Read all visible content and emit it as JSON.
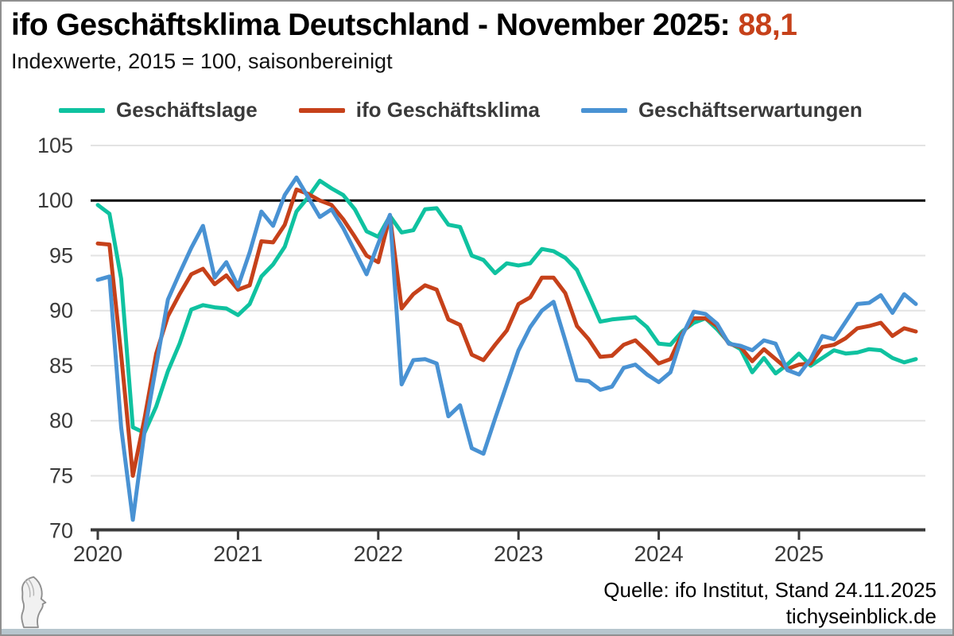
{
  "header": {
    "title": "ifo Geschäftsklima Deutschland - November 2025: ",
    "title_value": "88,1",
    "subtitle": "Indexwerte, 2015 = 100, saisonbereinigt"
  },
  "legend": [
    {
      "label": "Geschäftslage",
      "color": "#0fc2a0"
    },
    {
      "label": "ifo Geschäftsklima",
      "color": "#c6411a"
    },
    {
      "label": "Geschäftserwartungen",
      "color": "#4992d3"
    }
  ],
  "footer": {
    "source_line1": "Quelle: ifo Institut, Stand 24.11.2025",
    "source_line2": "tichyseinblick.de",
    "logo": "tichys-einblick-head-logo"
  },
  "colors": {
    "title_value": "#c6411a",
    "grid": "#e3e3e3",
    "baseline": "#000000",
    "axis": "#3a3a3a",
    "bottom_bar": "#b7c6ce",
    "frame_border": "#909090"
  },
  "chart_data": {
    "type": "line",
    "title": "ifo Geschäftsklima Deutschland - November 2025: 88,1",
    "subtitle": "Indexwerte, 2015 = 100, saisonbereinigt",
    "x_start": "2020-01",
    "x_end": "2025-11",
    "x_tick_labels": [
      "2020",
      "2021",
      "2022",
      "2023",
      "2024",
      "2025"
    ],
    "x_tick_months": [
      0,
      12,
      24,
      36,
      48,
      60
    ],
    "y_ticks": [
      105,
      100,
      95,
      90,
      85,
      80,
      75,
      70
    ],
    "ylim": [
      70,
      105
    ],
    "baseline": 100,
    "grid": true,
    "legend_position": "top",
    "series": [
      {
        "name": "Geschäftslage",
        "color": "#0fc2a0",
        "values": [
          99.6,
          98.8,
          92.9,
          79.4,
          78.9,
          81.3,
          84.5,
          87.0,
          90.1,
          90.5,
          90.3,
          90.2,
          89.6,
          90.6,
          93.1,
          94.2,
          95.8,
          99.0,
          100.3,
          101.8,
          101.1,
          100.5,
          99.2,
          97.2,
          96.7,
          98.6,
          97.1,
          97.3,
          99.2,
          99.3,
          97.8,
          97.6,
          95.0,
          94.6,
          93.4,
          94.3,
          94.1,
          94.3,
          95.6,
          95.4,
          94.8,
          93.7,
          91.4,
          89.0,
          89.2,
          89.3,
          89.4,
          88.5,
          87.0,
          86.9,
          88.1,
          88.9,
          89.3,
          88.3,
          87.1,
          86.5,
          84.4,
          85.7,
          84.3,
          85.1,
          86.1,
          85.0,
          85.7,
          86.4,
          86.1,
          86.2,
          86.5,
          86.4,
          85.7,
          85.3,
          85.6
        ]
      },
      {
        "name": "ifo Geschäftsklima",
        "color": "#c6411a",
        "values": [
          96.1,
          96.0,
          86.0,
          75.0,
          80.2,
          86.1,
          89.5,
          91.5,
          93.3,
          93.8,
          92.4,
          93.2,
          91.9,
          92.3,
          96.3,
          96.2,
          97.8,
          101.0,
          100.6,
          100.0,
          99.6,
          98.3,
          96.7,
          95.0,
          94.4,
          98.6,
          90.2,
          91.5,
          92.3,
          91.9,
          89.2,
          88.7,
          86.0,
          85.5,
          86.9,
          88.2,
          90.6,
          91.2,
          93.0,
          93.0,
          91.6,
          88.6,
          87.4,
          85.8,
          85.9,
          86.9,
          87.3,
          86.3,
          85.2,
          85.6,
          87.9,
          89.3,
          89.3,
          88.6,
          87.0,
          86.7,
          85.4,
          86.5,
          85.6,
          84.7,
          85.1,
          85.2,
          86.7,
          86.9,
          87.5,
          88.4,
          88.6,
          88.9,
          87.7,
          88.4,
          88.1
        ]
      },
      {
        "name": "Geschäftserwartungen",
        "color": "#4992d3",
        "values": [
          92.8,
          93.1,
          79.4,
          71.0,
          79.0,
          85.0,
          91.0,
          93.4,
          95.7,
          97.7,
          93.0,
          94.4,
          92.2,
          95.3,
          99.0,
          97.7,
          100.5,
          102.1,
          100.3,
          98.5,
          99.2,
          97.5,
          95.4,
          93.3,
          96.1,
          98.7,
          83.3,
          85.5,
          85.6,
          85.2,
          80.4,
          81.4,
          77.5,
          77.0,
          80.2,
          83.3,
          86.4,
          88.5,
          90.0,
          90.8,
          87.3,
          83.7,
          83.6,
          82.8,
          83.1,
          84.8,
          85.1,
          84.2,
          83.5,
          84.4,
          87.7,
          89.9,
          89.7,
          88.8,
          87.0,
          86.8,
          86.4,
          87.3,
          87.0,
          84.6,
          84.2,
          85.6,
          87.7,
          87.4,
          89.0,
          90.6,
          90.7,
          91.4,
          89.8,
          91.5,
          90.6
        ]
      }
    ]
  }
}
